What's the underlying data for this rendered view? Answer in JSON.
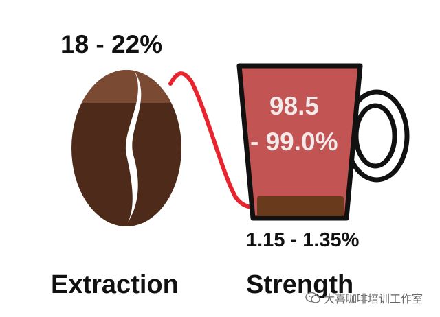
{
  "extraction_value": "18 - 22%",
  "water_value_line1": "98.5",
  "water_value_line2": "- 99.0%",
  "strength_value": "1.15 - 1.35%",
  "extraction_caption": "Extraction",
  "strength_caption": "Strength",
  "watermark": "大喜咖啡培训工作室",
  "colors": {
    "bean_dark": "#4e2a1a",
    "bean_light": "#7a4a33",
    "cup_fill": "#c25454",
    "cup_outline": "#111111",
    "coffee_bottom": "#6a3a1c",
    "connector_line": "#e8242e"
  }
}
